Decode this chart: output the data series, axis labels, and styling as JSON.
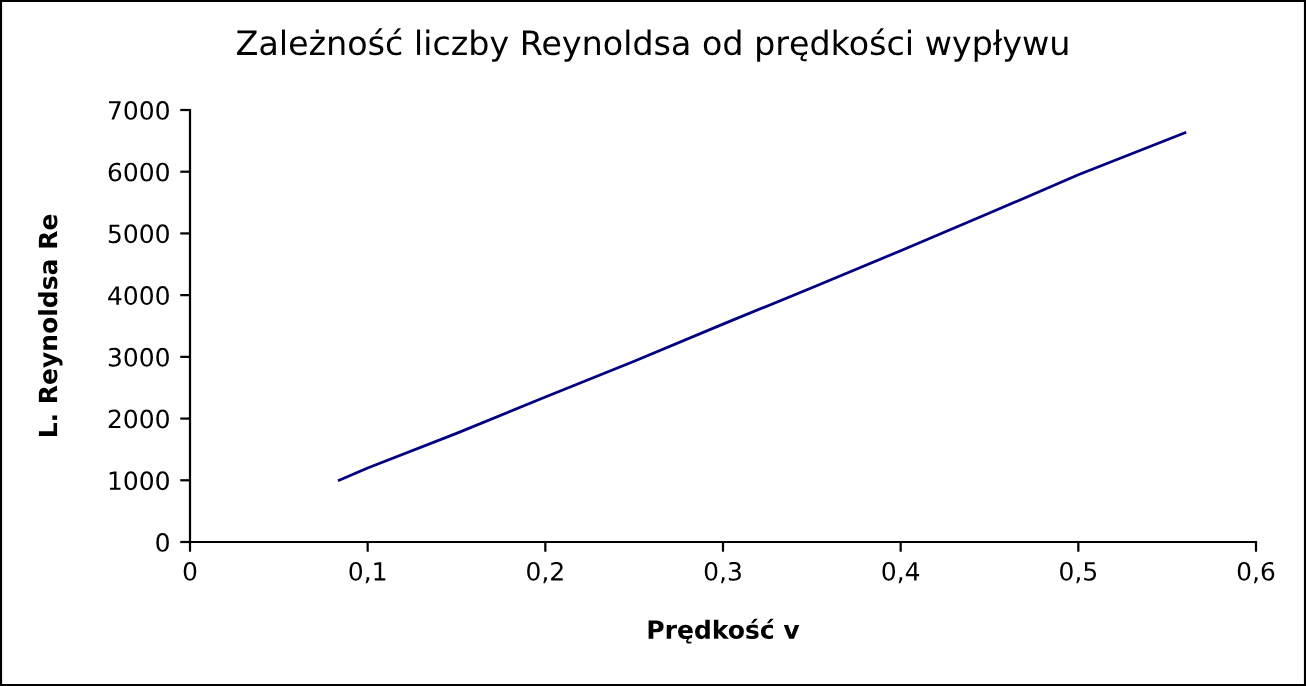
{
  "chart_data": {
    "type": "line",
    "title": "Zależność liczby Reynoldsa od prędkości wypływu",
    "xlabel": "Prędkość v",
    "ylabel": "L. Reynoldsa Re",
    "x": [
      0.084,
      0.1,
      0.15,
      0.2,
      0.25,
      0.3,
      0.35,
      0.4,
      0.45,
      0.5,
      0.56
    ],
    "series": [
      {
        "color": "#000080",
        "values": [
          1000,
          1200,
          1760,
          2350,
          2930,
          3530,
          4120,
          4720,
          5330,
          5950,
          6630
        ]
      }
    ],
    "xlim": [
      0,
      0.6
    ],
    "xticks": [
      {
        "value": 0,
        "label": "0"
      },
      {
        "value": 0.1,
        "label": "0,1"
      },
      {
        "value": 0.2,
        "label": "0,2"
      },
      {
        "value": 0.3,
        "label": "0,3"
      },
      {
        "value": 0.4,
        "label": "0,4"
      },
      {
        "value": 0.5,
        "label": "0,5"
      },
      {
        "value": 0.6,
        "label": "0,6"
      }
    ],
    "ylim": [
      0,
      7000
    ],
    "yticks": [
      0,
      1000,
      2000,
      3000,
      4000,
      5000,
      6000,
      7000
    ],
    "grid": false,
    "marker": "none",
    "line_style": "solid"
  }
}
